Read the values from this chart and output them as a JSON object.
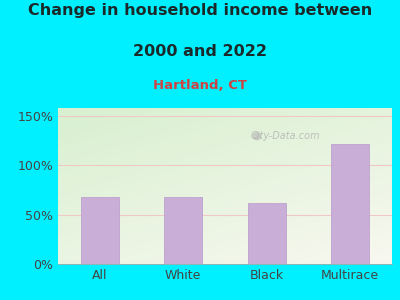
{
  "title_line1": "Change in household income between",
  "title_line2": "2000 and 2022",
  "subtitle": "Hartland, CT",
  "categories": [
    "All",
    "White",
    "Black",
    "Multirace"
  ],
  "values": [
    68,
    68,
    62,
    122
  ],
  "bar_color": "#c9aed8",
  "bar_edge_color": "#b898cc",
  "title_fontsize": 11.5,
  "subtitle_fontsize": 9.5,
  "tick_fontsize": 9,
  "ylabel_ticks": [
    0,
    50,
    100,
    150
  ],
  "ylabel_labels": [
    "0%",
    "50%",
    "100%",
    "150%"
  ],
  "ylim": [
    0,
    158
  ],
  "bg_color": "#00f0ff",
  "plot_bg_green": "#d8f0d0",
  "plot_bg_white": "#f8f8f0",
  "grid_color": "#f0c8c8",
  "grid_linewidth": 0.8,
  "title_color": "#1a2a2a",
  "subtitle_color": "#cc4444",
  "watermark": "City-Data.com",
  "tick_color": "#444444"
}
